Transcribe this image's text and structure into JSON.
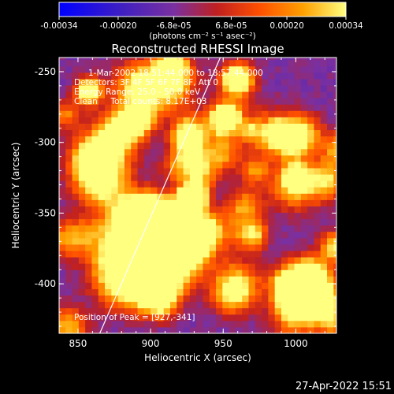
{
  "chart_data": {
    "type": "heatmap",
    "title": "Reconstructed RHESSI Image",
    "xlabel": "Heliocentric X (arcsec)",
    "ylabel": "Heliocentric Y (arcsec)",
    "xlim": [
      837,
      1028
    ],
    "ylim": [
      -435,
      -240
    ],
    "x_ticks": [
      850,
      900,
      950,
      1000
    ],
    "y_ticks": [
      -250,
      -300,
      -350,
      -400
    ],
    "colorbar": {
      "range": [
        -0.00034,
        0.00034
      ],
      "ticks": [
        "-0.00034",
        "-0.00020",
        "-6.8e-05",
        "6.8e-05",
        "0.00020",
        "0.00034"
      ],
      "label": "(photons cm⁻² s⁻¹ asec⁻²)",
      "colors": [
        "#0000ff",
        "#4020c0",
        "#7a30a0",
        "#c02020",
        "#ff5000",
        "#ffa000",
        "#ffff80"
      ]
    },
    "peak": [
      927,
      -341
    ],
    "annotations": {
      "time": "1-Mar-2002 18:51:44.000 to 18:57:44.000",
      "detectors": "Detectors: 3F 4F 5F 6F 7F 8F, Att 0",
      "energy": "Energy Range: 25.0 - 50.0 keV",
      "counts": "Clean     Total counts: 8.17E+03",
      "peak_text": "Position of Peak = [927,-341]"
    },
    "limb_line": [
      [
        865,
        -435
      ],
      [
        948,
        -240
      ]
    ],
    "grid": false,
    "legend": "none"
  },
  "footer": {
    "timestamp": "27-Apr-2022 15:51"
  }
}
